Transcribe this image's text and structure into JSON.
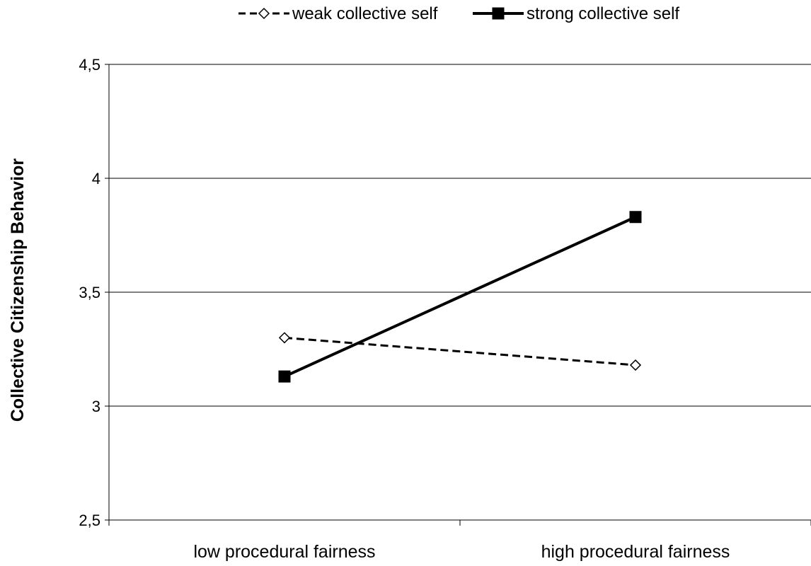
{
  "chart_data": {
    "type": "line",
    "title": "",
    "xlabel": "",
    "ylabel": "Collective Citizenship Behavior",
    "categories": [
      "low procedural fairness",
      "high procedural fairness"
    ],
    "series": [
      {
        "name": "weak collective self",
        "values": [
          3.3,
          3.18
        ],
        "line_style": "dashed",
        "marker": "open-diamond",
        "color": "#000000"
      },
      {
        "name": "strong collective self",
        "values": [
          3.13,
          3.83
        ],
        "line_style": "solid",
        "marker": "filled-square",
        "color": "#000000"
      }
    ],
    "ylim": [
      2.5,
      4.5
    ],
    "yticks": [
      2.5,
      3,
      3.5,
      4,
      4.5
    ],
    "ytick_labels": [
      "2,5",
      "3",
      "3,5",
      "4",
      "4,5"
    ],
    "grid": "horizontal",
    "legend_position": "top"
  }
}
